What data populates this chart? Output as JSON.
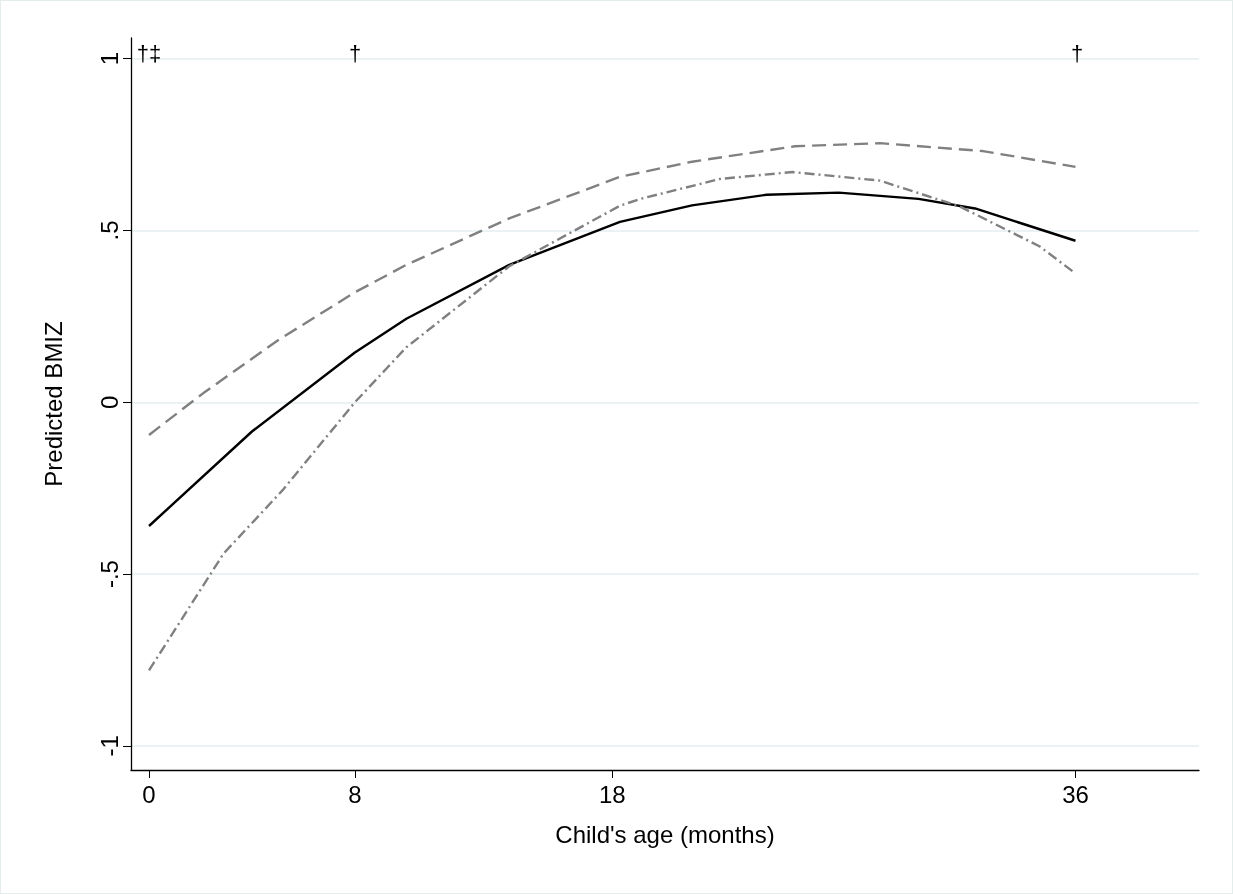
{
  "chart_data": {
    "type": "line",
    "xlabel": "Child's age (months)",
    "ylabel": "Predicted BMIZ",
    "xlim": [
      -0.7,
      40.8
    ],
    "xticks": [
      0,
      8,
      18,
      36
    ],
    "ylim": [
      -1.07,
      1.06
    ],
    "yticks": [
      {
        "value": -1,
        "label": "-1"
      },
      {
        "value": -0.5,
        "label": "-.5"
      },
      {
        "value": 0,
        "label": "0"
      },
      {
        "value": 0.5,
        "label": ".5"
      },
      {
        "value": 1,
        "label": "1"
      }
    ],
    "grid": "y",
    "marker": "none",
    "series": [
      {
        "color": "#000000",
        "line_style": "solid",
        "x": [
          0,
          4,
          8,
          10,
          14,
          18.3,
          21.1,
          24,
          26.8,
          29.9,
          32.1,
          36
        ],
        "values": [
          -0.36,
          -0.085,
          0.145,
          0.243,
          0.4,
          0.525,
          0.573,
          0.604,
          0.61,
          0.592,
          0.564,
          0.47
        ]
      },
      {
        "color": "#808080",
        "line_style": "dashed",
        "x": [
          0,
          2.1,
          5,
          8,
          10,
          14,
          18.3,
          21.1,
          25.1,
          28.4,
          32.4,
          36
        ],
        "values": [
          -0.095,
          0.026,
          0.18,
          0.32,
          0.4,
          0.535,
          0.656,
          0.7,
          0.745,
          0.754,
          0.731,
          0.685
        ]
      },
      {
        "color": "#808080",
        "line_style": "dashdot",
        "x": [
          0,
          2.9,
          5.2,
          8,
          10,
          14,
          18.3,
          19.1,
          22.2,
          25,
          28.4,
          31.5,
          34.6,
          36
        ],
        "values": [
          -0.78,
          -0.44,
          -0.255,
          0,
          0.16,
          0.396,
          0.572,
          0.592,
          0.65,
          0.67,
          0.645,
          0.57,
          0.454,
          0.375
        ]
      }
    ],
    "annotations": [
      "†‡",
      "†",
      "†"
    ]
  }
}
